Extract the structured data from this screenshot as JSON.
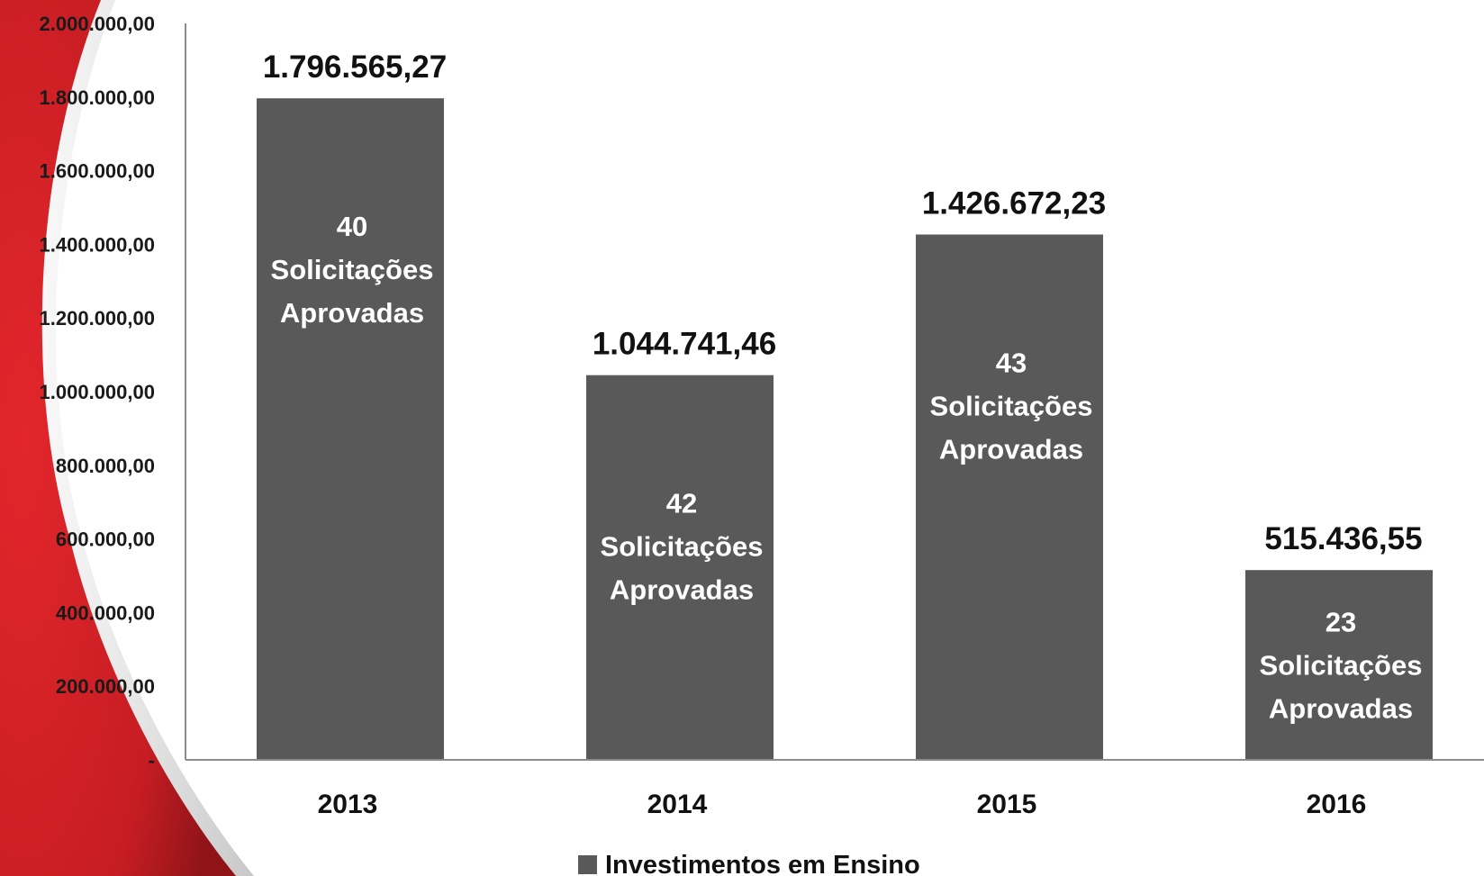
{
  "colors": {
    "bar": "#595959",
    "accent_red": "#d42127",
    "axis": "#8c8c8c"
  },
  "chart_data": {
    "type": "bar",
    "categories": [
      "2013",
      "2014",
      "2015",
      "2016"
    ],
    "series": [
      {
        "name": "Investimentos em Ensino",
        "values": [
          1796565.27,
          1044741.46,
          1426672.23,
          515436.55
        ],
        "value_labels": [
          "1.796.565,27",
          "1.044.741,46",
          "1.426.672,23",
          "515.436,55"
        ]
      }
    ],
    "bar_annotations": [
      [
        "40",
        "Solicitações",
        "Aprovadas"
      ],
      [
        "42",
        "Solicitações",
        "Aprovadas"
      ],
      [
        "43",
        "Solicitações",
        "Aprovadas"
      ],
      [
        "23",
        "Solicitações",
        "Aprovadas"
      ]
    ],
    "ylim": [
      0,
      2000000
    ],
    "yticks": [
      0,
      200000,
      400000,
      600000,
      800000,
      1000000,
      1200000,
      1400000,
      1600000,
      1800000,
      2000000
    ],
    "ytick_labels": [
      "-",
      "200.000,00",
      "400.000,00",
      "600.000,00",
      "800.000,00",
      "1.000.000,00",
      "1.200.000,00",
      "1.400.000,00",
      "1.600.000,00",
      "1.800.000,00",
      "2.000.000,00"
    ],
    "grid": false,
    "legend_position": "bottom-center"
  }
}
